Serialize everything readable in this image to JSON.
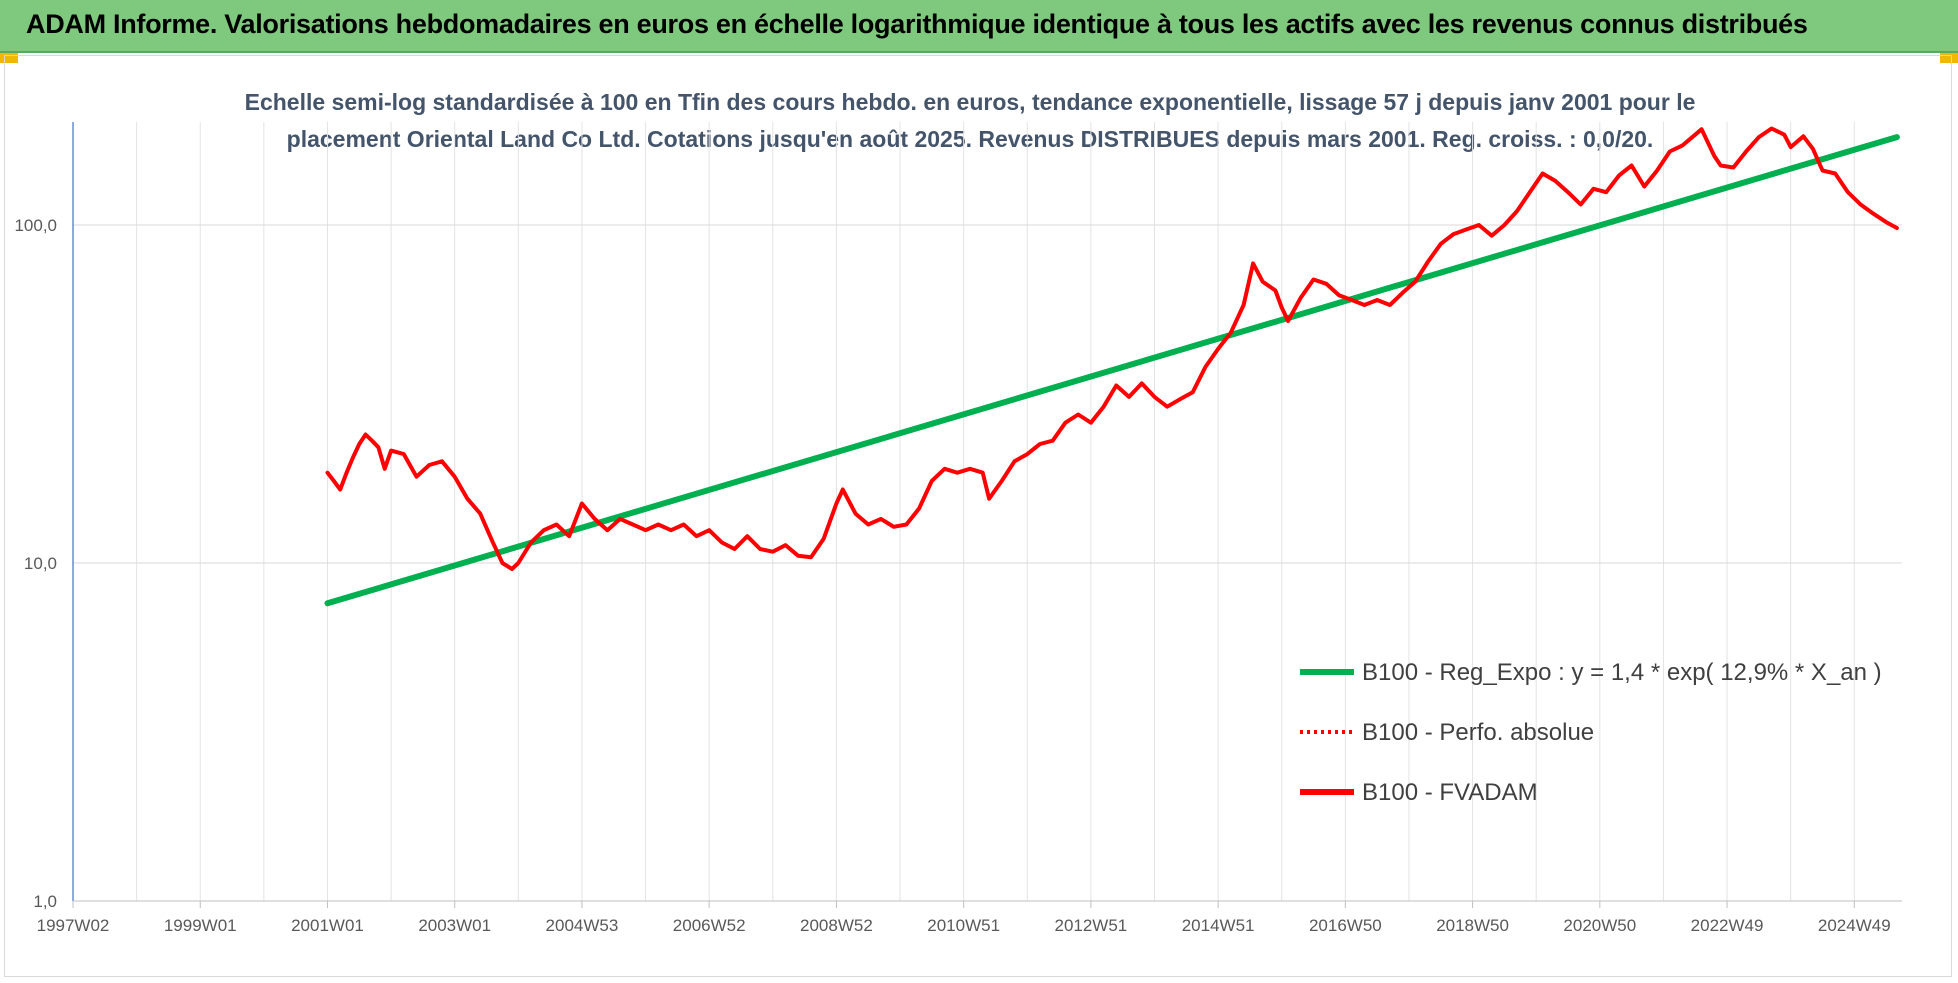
{
  "banner": {
    "title": "ADAM Informe. Valorisations hebdomadaires en euros en échelle logarithmique identique à tous les actifs avec les revenus connus distribués"
  },
  "chart_data": {
    "type": "line",
    "subtitle_lines": [
      "Echelle semi-log standardisée à 100 en Tfin des cours hebdo. en euros, tendance exponentielle, lissage 57 j depuis janv 2001 pour le",
      "placement Oriental Land Co Ltd. Cotations jusqu'en août 2025. Revenus DISTRIBUES depuis mars 2001. Reg. croiss. : 0,0/20."
    ],
    "y_scale": "log",
    "ylim": [
      1,
      200
    ],
    "y_ticks": [
      {
        "value": 1,
        "label": "1,0"
      },
      {
        "value": 10,
        "label": "10,0"
      },
      {
        "value": 100,
        "label": "100,0"
      }
    ],
    "x_range": [
      1997.0,
      2025.75
    ],
    "x_ticks": [
      {
        "x": 1997.0,
        "label": "1997W02"
      },
      {
        "x": 1999.0,
        "label": "1999W01"
      },
      {
        "x": 2001.0,
        "label": "2001W01"
      },
      {
        "x": 2003.0,
        "label": "2003W01"
      },
      {
        "x": 2005.0,
        "label": "2004W53"
      },
      {
        "x": 2007.0,
        "label": "2006W52"
      },
      {
        "x": 2009.0,
        "label": "2008W52"
      },
      {
        "x": 2011.0,
        "label": "2010W51"
      },
      {
        "x": 2013.0,
        "label": "2012W51"
      },
      {
        "x": 2015.0,
        "label": "2014W51"
      },
      {
        "x": 2017.0,
        "label": "2016W50"
      },
      {
        "x": 2019.0,
        "label": "2018W50"
      },
      {
        "x": 2021.0,
        "label": "2020W50"
      },
      {
        "x": 2023.0,
        "label": "2022W49"
      },
      {
        "x": 2025.0,
        "label": "2024W49"
      }
    ],
    "x_grid_years": [
      1997,
      1998,
      1999,
      2000,
      2001,
      2002,
      2003,
      2004,
      2005,
      2006,
      2007,
      2008,
      2009,
      2010,
      2011,
      2012,
      2013,
      2014,
      2015,
      2016,
      2017,
      2018,
      2019,
      2020,
      2021,
      2022,
      2023,
      2024,
      2025
    ],
    "legend_position": "bottom-right",
    "series": [
      {
        "name": "B100 - Reg_Expo : y = 1,4 * exp( 12,9% *  X_an )",
        "color": "#00b050",
        "style": "solid",
        "points": [
          [
            2001.0,
            7.6
          ],
          [
            2025.67,
            182
          ]
        ]
      },
      {
        "name": "B100 - Perfo. absolue",
        "color": "#ff0000",
        "style": "dotted",
        "points": []
      },
      {
        "name": "B100 - FVADAM",
        "color": "#ff0000",
        "style": "solid",
        "points": [
          [
            2001.0,
            18.5
          ],
          [
            2001.1,
            17.5
          ],
          [
            2001.2,
            16.5
          ],
          [
            2001.3,
            18.5
          ],
          [
            2001.4,
            20.5
          ],
          [
            2001.5,
            22.5
          ],
          [
            2001.6,
            24
          ],
          [
            2001.7,
            23
          ],
          [
            2001.8,
            22
          ],
          [
            2001.9,
            19
          ],
          [
            2002.0,
            21.5
          ],
          [
            2002.2,
            21
          ],
          [
            2002.4,
            18
          ],
          [
            2002.6,
            19.5
          ],
          [
            2002.8,
            20
          ],
          [
            2003.0,
            18
          ],
          [
            2003.2,
            15.5
          ],
          [
            2003.4,
            14
          ],
          [
            2003.6,
            11.5
          ],
          [
            2003.75,
            10
          ],
          [
            2003.9,
            9.6
          ],
          [
            2004.0,
            10
          ],
          [
            2004.2,
            11.5
          ],
          [
            2004.4,
            12.5
          ],
          [
            2004.6,
            13
          ],
          [
            2004.8,
            12
          ],
          [
            2005.0,
            15
          ],
          [
            2005.2,
            13.5
          ],
          [
            2005.4,
            12.5
          ],
          [
            2005.6,
            13.5
          ],
          [
            2005.8,
            13
          ],
          [
            2006.0,
            12.5
          ],
          [
            2006.2,
            13
          ],
          [
            2006.4,
            12.5
          ],
          [
            2006.6,
            13
          ],
          [
            2006.8,
            12
          ],
          [
            2007.0,
            12.5
          ],
          [
            2007.2,
            11.5
          ],
          [
            2007.4,
            11
          ],
          [
            2007.6,
            12
          ],
          [
            2007.8,
            11
          ],
          [
            2008.0,
            10.8
          ],
          [
            2008.2,
            11.3
          ],
          [
            2008.4,
            10.5
          ],
          [
            2008.6,
            10.4
          ],
          [
            2008.8,
            11.8
          ],
          [
            2009.0,
            15
          ],
          [
            2009.1,
            16.5
          ],
          [
            2009.3,
            14
          ],
          [
            2009.5,
            13
          ],
          [
            2009.7,
            13.5
          ],
          [
            2009.9,
            12.8
          ],
          [
            2010.1,
            13
          ],
          [
            2010.3,
            14.5
          ],
          [
            2010.5,
            17.5
          ],
          [
            2010.7,
            19
          ],
          [
            2010.9,
            18.5
          ],
          [
            2011.1,
            19
          ],
          [
            2011.3,
            18.5
          ],
          [
            2011.4,
            15.5
          ],
          [
            2011.6,
            17.5
          ],
          [
            2011.8,
            20
          ],
          [
            2012.0,
            21
          ],
          [
            2012.2,
            22.5
          ],
          [
            2012.4,
            23
          ],
          [
            2012.6,
            26
          ],
          [
            2012.8,
            27.5
          ],
          [
            2013.0,
            26
          ],
          [
            2013.2,
            29
          ],
          [
            2013.4,
            33.5
          ],
          [
            2013.6,
            31
          ],
          [
            2013.8,
            34
          ],
          [
            2014.0,
            31
          ],
          [
            2014.2,
            29
          ],
          [
            2014.4,
            30.5
          ],
          [
            2014.6,
            32
          ],
          [
            2014.8,
            38
          ],
          [
            2015.0,
            43
          ],
          [
            2015.2,
            48
          ],
          [
            2015.4,
            58
          ],
          [
            2015.55,
            77
          ],
          [
            2015.7,
            68
          ],
          [
            2015.9,
            64
          ],
          [
            2016.0,
            57
          ],
          [
            2016.1,
            52
          ],
          [
            2016.3,
            61
          ],
          [
            2016.5,
            69
          ],
          [
            2016.7,
            67
          ],
          [
            2016.9,
            62
          ],
          [
            2017.1,
            60
          ],
          [
            2017.3,
            58
          ],
          [
            2017.5,
            60
          ],
          [
            2017.7,
            58
          ],
          [
            2017.9,
            63
          ],
          [
            2018.1,
            68
          ],
          [
            2018.3,
            78
          ],
          [
            2018.5,
            88
          ],
          [
            2018.7,
            94
          ],
          [
            2018.9,
            97
          ],
          [
            2019.1,
            100
          ],
          [
            2019.3,
            93
          ],
          [
            2019.5,
            100
          ],
          [
            2019.7,
            110
          ],
          [
            2019.9,
            125
          ],
          [
            2020.1,
            142
          ],
          [
            2020.3,
            135
          ],
          [
            2020.5,
            125
          ],
          [
            2020.7,
            115
          ],
          [
            2020.9,
            128
          ],
          [
            2021.1,
            125
          ],
          [
            2021.3,
            140
          ],
          [
            2021.5,
            150
          ],
          [
            2021.7,
            130
          ],
          [
            2021.9,
            145
          ],
          [
            2022.1,
            165
          ],
          [
            2022.3,
            172
          ],
          [
            2022.5,
            185
          ],
          [
            2022.6,
            192
          ],
          [
            2022.8,
            160
          ],
          [
            2022.9,
            150
          ],
          [
            2023.1,
            148
          ],
          [
            2023.3,
            165
          ],
          [
            2023.5,
            182
          ],
          [
            2023.7,
            193
          ],
          [
            2023.9,
            185
          ],
          [
            2024.0,
            170
          ],
          [
            2024.2,
            183
          ],
          [
            2024.35,
            168
          ],
          [
            2024.5,
            145
          ],
          [
            2024.7,
            142
          ],
          [
            2024.9,
            125
          ],
          [
            2025.1,
            115
          ],
          [
            2025.3,
            108
          ],
          [
            2025.5,
            102
          ],
          [
            2025.67,
            98
          ]
        ]
      }
    ]
  }
}
